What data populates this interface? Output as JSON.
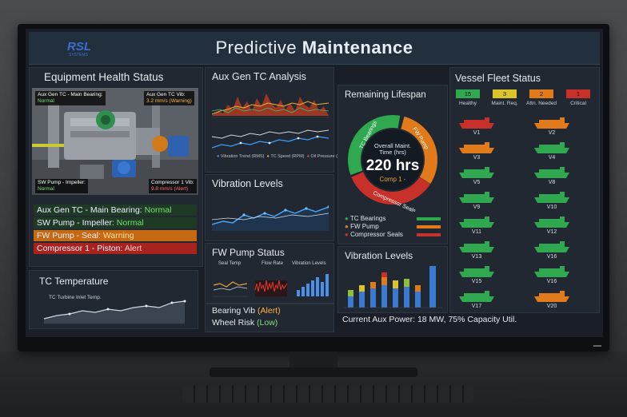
{
  "app": {
    "title_light": "Predictive",
    "title_bold": "Maintenance",
    "logo_text": "RSL",
    "logo_subtext": "SYSTEMS"
  },
  "equipment": {
    "title": "Equipment Health Status",
    "image_labels": [
      {
        "name": "Aux Gen TC - Main Bearing:",
        "value": "Normal",
        "state": "normal"
      },
      {
        "name": "Aux Gen TC Vib:",
        "value": "3.2 mm/s (Warning)",
        "state": "warning"
      },
      {
        "name": "SW Pump - Impeller:",
        "value": "Normal",
        "state": "normal"
      },
      {
        "name": "Compressor 1 Vib:",
        "value": "9.8 mm/s (Alert)",
        "state": "alert"
      }
    ],
    "rows": [
      {
        "label": "Aux Gen TC - Main Bearing: ",
        "status": "Normal",
        "state": "normal"
      },
      {
        "label": "SW Pump - Impeller: ",
        "status": "Normal",
        "state": "normal"
      },
      {
        "label": "FW Pump - Seal: ",
        "status": "Warning",
        "state": "warning"
      },
      {
        "label": "Compressor 1 - Piston: ",
        "status": "Alert",
        "state": "alert"
      }
    ]
  },
  "tc_temp": {
    "title": "TC Temperature",
    "chart_label": "TC Turbine Inlet Temp."
  },
  "auxgen": {
    "title": "Aux Gen TC Analysis",
    "legend": [
      "Vibration Trend (RMS)",
      "TC Speed (RPM)",
      "Oil Pressure (bar)"
    ]
  },
  "vibration1": {
    "title": "Vibration Levels"
  },
  "fwpump": {
    "title": "FW Pump Status",
    "charts": [
      "Seal Temp",
      "Flow Rate",
      "Vibration Levels"
    ]
  },
  "bearing": {
    "line1_label": "Bearing Vib ",
    "line1_status": "(Alert)",
    "line2_label": "Wheel Risk ",
    "line2_status": "(Low)"
  },
  "lifespan": {
    "title": "Remaining Lifespan",
    "center_label": "Overall Maint. Time (hrs)",
    "center_value": "220 hrs",
    "center_sub": "Comp 1 -",
    "segments": [
      "TC Bearings",
      "FW Pump",
      "Compressor Seals"
    ],
    "segment_colors": [
      "#2fa84f",
      "#e07a1a",
      "#c8302a"
    ],
    "legend": [
      {
        "label": "TC Bearings",
        "color": "#2fa84f"
      },
      {
        "label": "FW Pump",
        "color": "#e07a1a"
      },
      {
        "label": "Compressor Seals",
        "color": "#c8302a"
      }
    ]
  },
  "vibration2": {
    "title": "Vibration Levels"
  },
  "fleet": {
    "title": "Vessel Fleet Status",
    "categories": [
      {
        "count": "15",
        "label": "Healthy",
        "color": "#2fa84f"
      },
      {
        "count": "3",
        "label": "Maint. Req.",
        "color": "#d9c42a"
      },
      {
        "count": "2",
        "label": "Attn. Needed",
        "color": "#e07a1a"
      },
      {
        "count": "1",
        "label": "Critical",
        "color": "#c8302a"
      }
    ],
    "vessels": [
      {
        "label": "V1",
        "color": "#c8302a"
      },
      {
        "label": "V2",
        "color": "#e07a1a"
      },
      {
        "label": "V3",
        "color": "#e07a1a"
      },
      {
        "label": "V4",
        "color": "#2fa84f"
      },
      {
        "label": "V5",
        "color": "#2fa84f"
      },
      {
        "label": "V8",
        "color": "#2fa84f"
      },
      {
        "label": "V9",
        "color": "#2fa84f"
      },
      {
        "label": "V10",
        "color": "#2fa84f"
      },
      {
        "label": "V11",
        "color": "#2fa84f"
      },
      {
        "label": "V12",
        "color": "#2fa84f"
      },
      {
        "label": "V13",
        "color": "#2fa84f"
      },
      {
        "label": "V16",
        "color": "#2fa84f"
      },
      {
        "label": "V15",
        "color": "#2fa84f"
      },
      {
        "label": "V16",
        "color": "#2fa84f"
      },
      {
        "label": "V17",
        "color": "#2fa84f"
      },
      {
        "label": "V20",
        "color": "#e07a1a"
      }
    ]
  },
  "footer": {
    "power_text": "Current Aux Power: 18 MW, 75% Capacity Util."
  }
}
